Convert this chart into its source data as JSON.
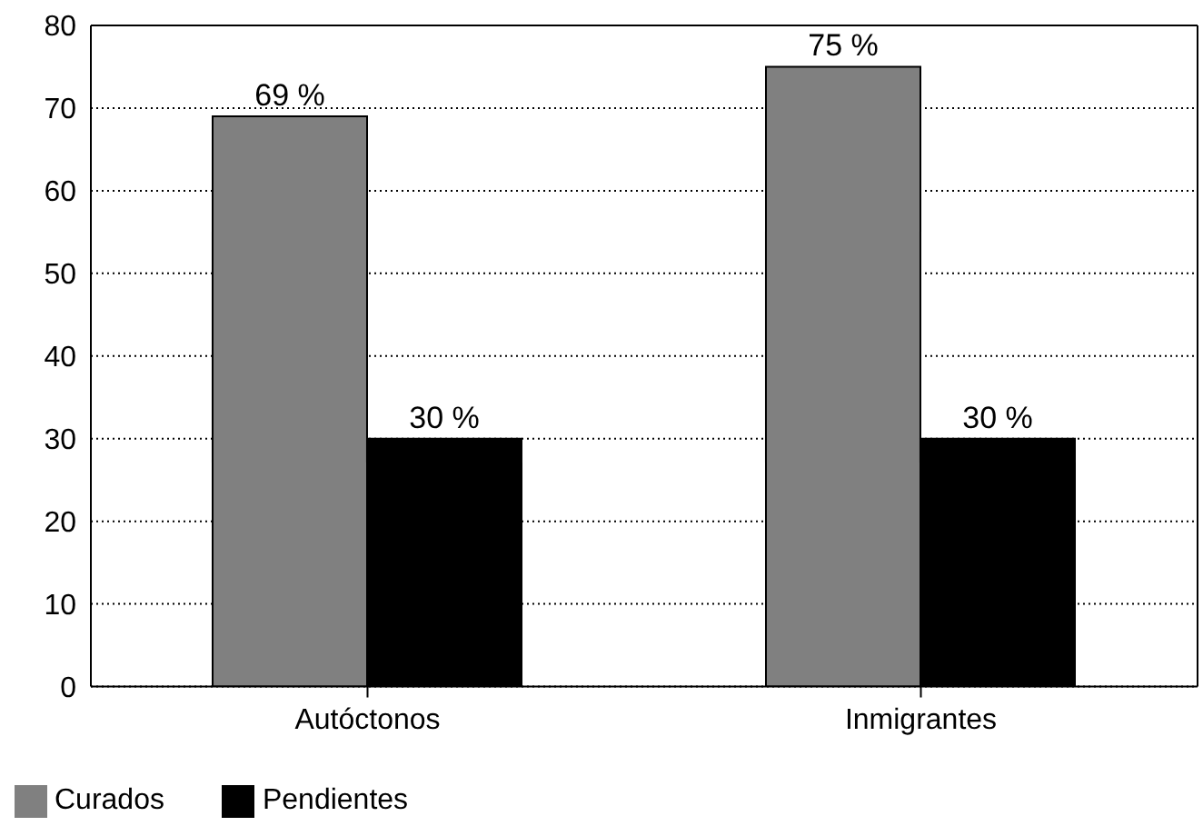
{
  "chart_data": {
    "type": "bar",
    "categories": [
      "Autóctonos",
      "Inmigrantes"
    ],
    "series": [
      {
        "name": "Curados",
        "color": "#808080",
        "values": [
          69,
          75
        ],
        "value_labels": [
          "69 %",
          "75 %"
        ]
      },
      {
        "name": "Pendientes",
        "color": "#000000",
        "values": [
          30,
          30
        ],
        "value_labels": [
          "30 %",
          "30 %"
        ]
      }
    ],
    "ylim": [
      0,
      80
    ],
    "yticks": [
      0,
      10,
      20,
      30,
      40,
      50,
      60,
      70,
      80
    ],
    "grid": "y",
    "legend": "bottom left"
  }
}
